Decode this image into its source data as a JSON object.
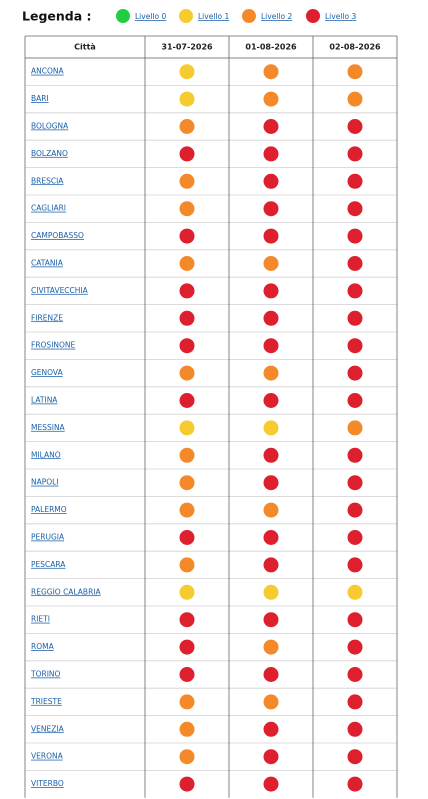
{
  "legend": {
    "title": "Legenda :",
    "items": [
      {
        "label": "Livello 0",
        "color": "#1fcf3f"
      },
      {
        "label": "Livello 1",
        "color": "#f6cb2f"
      },
      {
        "label": "Livello 2",
        "color": "#f4892a"
      },
      {
        "label": "Livello 3",
        "color": "#dd1f2e"
      }
    ]
  },
  "table": {
    "header": [
      "Città",
      "31-07-2026",
      "01-08-2026",
      "02-08-2026"
    ],
    "rows": [
      [
        "ANCONA",
        1,
        2,
        2
      ],
      [
        "BARI",
        1,
        2,
        2
      ],
      [
        "BOLOGNA",
        2,
        3,
        3
      ],
      [
        "BOLZANO",
        3,
        3,
        3
      ],
      [
        "BRESCIA",
        2,
        3,
        3
      ],
      [
        "CAGLIARI",
        2,
        3,
        3
      ],
      [
        "CAMPOBASSO",
        3,
        3,
        3
      ],
      [
        "CATANIA",
        2,
        2,
        3
      ],
      [
        "CIVITAVECCHIA",
        3,
        3,
        3
      ],
      [
        "FIRENZE",
        3,
        3,
        3
      ],
      [
        "FROSINONE",
        3,
        3,
        3
      ],
      [
        "GENOVA",
        2,
        2,
        3
      ],
      [
        "LATINA",
        3,
        3,
        3
      ],
      [
        "MESSINA",
        1,
        1,
        2
      ],
      [
        "MILANO",
        2,
        3,
        3
      ],
      [
        "NAPOLI",
        2,
        3,
        3
      ],
      [
        "PALERMO",
        2,
        2,
        3
      ],
      [
        "PERUGIA",
        3,
        3,
        3
      ],
      [
        "PESCARA",
        2,
        3,
        3
      ],
      [
        "REGGIO CALABRIA",
        1,
        1,
        1
      ],
      [
        "RIETI",
        3,
        3,
        3
      ],
      [
        "ROMA",
        3,
        2,
        3
      ],
      [
        "TORINO",
        3,
        3,
        3
      ],
      [
        "TRIESTE",
        2,
        2,
        3
      ],
      [
        "VENEZIA",
        2,
        3,
        3
      ],
      [
        "VERONA",
        2,
        3,
        3
      ],
      [
        "VITERBO",
        3,
        3,
        3
      ]
    ]
  }
}
